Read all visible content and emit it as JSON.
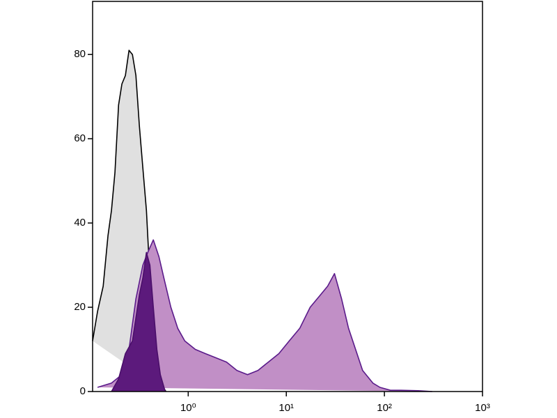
{
  "chart_data": {
    "type": "area",
    "xscale": "log",
    "xlim": [
      0.106,
      1000
    ],
    "xticks": [
      {
        "value": 1,
        "label": "10⁰"
      },
      {
        "value": 10,
        "label": "10¹"
      },
      {
        "value": 100,
        "label": "10²"
      },
      {
        "value": 1000,
        "label": "10³"
      }
    ],
    "ylim": [
      0,
      92.6
    ],
    "yticks": [
      0,
      20,
      40,
      60,
      80
    ],
    "series": [
      {
        "color": "#e0e0e0",
        "line_color": "#000000",
        "x": [
          0.106,
          0.119,
          0.136,
          0.152,
          0.165,
          0.179,
          0.195,
          0.211,
          0.229,
          0.249,
          0.27,
          0.293,
          0.318,
          0.345,
          0.375,
          0.407,
          0.441,
          0.479,
          0.52,
          0.593
        ],
        "values": [
          12,
          19,
          25,
          37,
          43,
          52,
          68,
          73,
          75,
          81,
          80,
          75,
          63,
          53,
          43,
          27,
          15,
          7,
          2,
          0
        ]
      },
      {
        "color": "#c18fc6",
        "line_color": "#5a1a8a",
        "x": [
          0.119,
          0.165,
          0.211,
          0.249,
          0.293,
          0.345,
          0.387,
          0.441,
          0.503,
          0.564,
          0.665,
          0.782,
          0.922,
          1.18,
          1.5,
          1.92,
          2.46,
          3.14,
          4.02,
          5.14,
          6.56,
          8.39,
          10.7,
          13.7,
          17.5,
          22.4,
          26.4,
          31.0,
          36.6,
          43.1,
          50.8,
          59.9,
          76.3,
          90.0,
          115,
          147,
          222,
          307
        ],
        "values": [
          1,
          2,
          4,
          10,
          22,
          30,
          33,
          36,
          32,
          27,
          20,
          15,
          12,
          10,
          9,
          8,
          7,
          5,
          4,
          5,
          7,
          9,
          12,
          15,
          20,
          23,
          25,
          28,
          22,
          15,
          10,
          5,
          2,
          1,
          0.3,
          0.3,
          0.2,
          0
        ]
      },
      {
        "color": "#5c1a7c",
        "line_color": "#4a0f6a",
        "x": [
          0.165,
          0.195,
          0.229,
          0.27,
          0.318,
          0.345,
          0.375,
          0.407,
          0.441,
          0.479,
          0.52,
          0.583
        ],
        "values": [
          0,
          3,
          9,
          12,
          23,
          27,
          33,
          30,
          20,
          10,
          4,
          0
        ]
      }
    ]
  }
}
